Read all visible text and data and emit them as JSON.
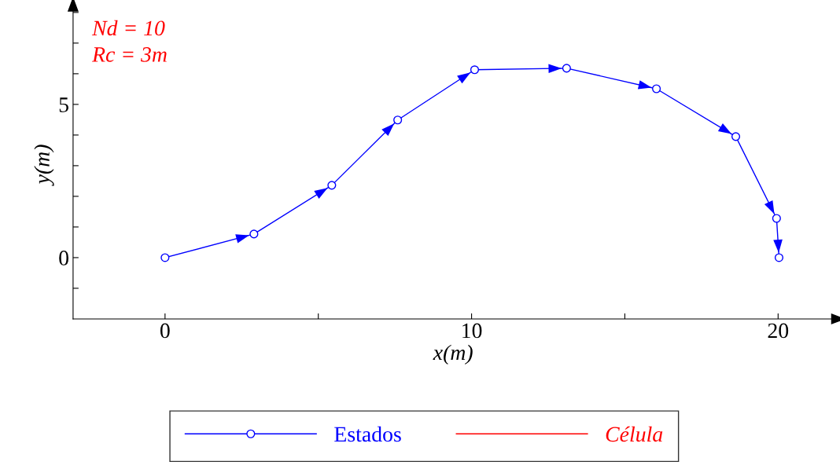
{
  "chart_data": {
    "type": "line",
    "xlabel": "x(m)",
    "ylabel": "y(m)",
    "annotations": [
      "Nd = 10",
      "Rc = 3m"
    ],
    "series": [
      {
        "name": "Estados",
        "color": "#0000ff",
        "marker": "circle",
        "x": [
          0,
          2.9,
          5.44,
          7.59,
          10.1,
          13.1,
          16.03,
          18.62,
          19.95,
          20.03
        ],
        "values": [
          0,
          0.77,
          2.36,
          4.49,
          6.13,
          6.18,
          5.51,
          3.95,
          1.28,
          0
        ]
      },
      {
        "name": "Célula",
        "color": "#ff0000",
        "marker": "none"
      }
    ],
    "xlim": [
      -3,
      21.8
    ],
    "ylim": [
      -2,
      8.1
    ],
    "xticks": [
      0,
      {
        "value": 5,
        "label": null
      },
      10,
      {
        "value": 15,
        "label": null
      },
      20
    ],
    "yticks": [
      {
        "value": -1,
        "label": null
      },
      0,
      {
        "value": 1,
        "label": null
      },
      {
        "value": 2,
        "label": null
      },
      {
        "value": 3,
        "label": null
      },
      {
        "value": 4,
        "label": null
      },
      5,
      {
        "value": 6,
        "label": null
      },
      {
        "value": 7,
        "label": null
      },
      {
        "value": 8,
        "label": null
      }
    ],
    "grid": false,
    "legend": "bottom"
  }
}
